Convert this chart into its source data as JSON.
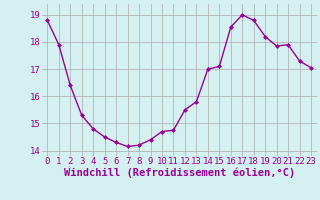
{
  "x": [
    0,
    1,
    2,
    3,
    4,
    5,
    6,
    7,
    8,
    9,
    10,
    11,
    12,
    13,
    14,
    15,
    16,
    17,
    18,
    19,
    20,
    21,
    22,
    23
  ],
  "y": [
    18.8,
    17.9,
    16.4,
    15.3,
    14.8,
    14.5,
    14.3,
    14.15,
    14.2,
    14.4,
    14.7,
    14.75,
    15.5,
    15.8,
    17.0,
    17.1,
    18.55,
    19.0,
    18.8,
    18.2,
    17.85,
    17.9,
    17.3,
    17.05
  ],
  "line_color": "#990099",
  "marker": "D",
  "marker_size": 2,
  "background_color": "#d5f0f0",
  "grid_color": "#aaaaaa",
  "xlabel": "Windchill (Refroidissement éolien,°C)",
  "xlabel_color": "#990099",
  "ylim": [
    13.8,
    19.4
  ],
  "yticks": [
    14,
    15,
    16,
    17,
    18,
    19
  ],
  "xticks": [
    0,
    1,
    2,
    3,
    4,
    5,
    6,
    7,
    8,
    9,
    10,
    11,
    12,
    13,
    14,
    15,
    16,
    17,
    18,
    19,
    20,
    21,
    22,
    23
  ],
  "tick_label_color": "#990099",
  "tick_label_fontsize": 6.5,
  "xlabel_fontsize": 7.5,
  "line_width": 1.0
}
